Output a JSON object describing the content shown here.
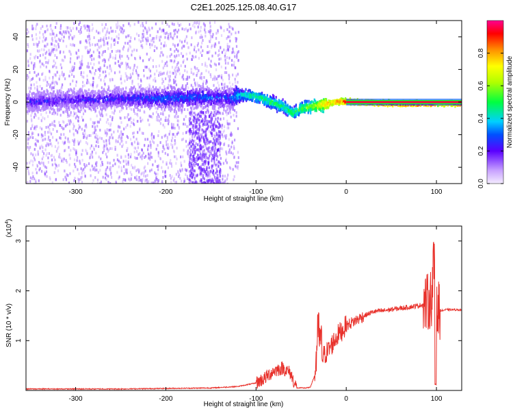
{
  "title": "C2E1.2025.125.08.40.G17",
  "colors": {
    "snr_line": "#e8302a",
    "axes": "#000000",
    "background": "#ffffff"
  },
  "chart_data": [
    {
      "type": "heatmap",
      "xlabel": "Height of straight line (km)",
      "ylabel": "Frequency (Hz)",
      "xlim": [
        -355,
        128
      ],
      "ylim": [
        -50,
        50
      ],
      "xticks": [
        -300,
        -200,
        -100,
        0,
        100
      ],
      "yticks": [
        -40,
        -20,
        0,
        20,
        40
      ],
      "colorbar": {
        "label": "Normalized spectral amplitude",
        "range": [
          0,
          1
        ],
        "ticks": [
          0.0,
          0.2,
          0.4,
          0.6,
          0.8
        ]
      },
      "ridge": {
        "x": [
          -355,
          -300,
          -250,
          -200,
          -160,
          -130,
          -120,
          -110,
          -100,
          -90,
          -80,
          -70,
          -60,
          -50,
          -40,
          -30,
          -20,
          -10,
          0,
          50,
          95,
          100,
          128
        ],
        "y": [
          1,
          2,
          3,
          3,
          4,
          3,
          5,
          5,
          4,
          2,
          0,
          -2,
          -6,
          -3,
          -2,
          -1,
          0,
          1,
          1,
          0,
          0,
          0,
          0
        ],
        "amplitude": [
          0.22,
          0.22,
          0.25,
          0.3,
          0.3,
          0.28,
          0.42,
          0.45,
          0.48,
          0.5,
          0.52,
          0.5,
          0.5,
          0.55,
          0.6,
          0.7,
          0.8,
          0.85,
          0.9,
          0.95,
          0.98,
          0.8,
          0.98
        ]
      }
    },
    {
      "type": "line",
      "xlabel": "Height of straight line (km)",
      "ylabel": "SNR (10 * v/v)",
      "yscale_label": "(x10^4)",
      "xlim": [
        -355,
        128
      ],
      "ylim": [
        0,
        3.3
      ],
      "xticks": [
        -300,
        -200,
        -100,
        0,
        100
      ],
      "yticks": [
        1,
        2,
        3
      ],
      "series": [
        {
          "x": [
            -355,
            -300,
            -250,
            -200,
            -150,
            -120,
            -100,
            -90,
            -80,
            -70,
            -62,
            -55,
            -45,
            -40,
            -35,
            -31,
            -28,
            -25,
            -20,
            -15,
            -10,
            -5,
            0,
            10,
            20,
            30,
            40,
            60,
            80,
            90,
            95,
            97,
            100,
            103,
            106,
            110,
            128
          ],
          "y": [
            0.03,
            0.03,
            0.03,
            0.04,
            0.05,
            0.08,
            0.15,
            0.25,
            0.4,
            0.45,
            0.35,
            0.05,
            0.05,
            0.06,
            0.3,
            1.2,
            0.9,
            0.7,
            0.8,
            0.95,
            1.1,
            1.2,
            1.3,
            1.4,
            1.5,
            1.58,
            1.6,
            1.65,
            1.7,
            1.75,
            1.9,
            2.6,
            1.5,
            1.62,
            1.6,
            1.62,
            1.62
          ]
        }
      ]
    }
  ]
}
